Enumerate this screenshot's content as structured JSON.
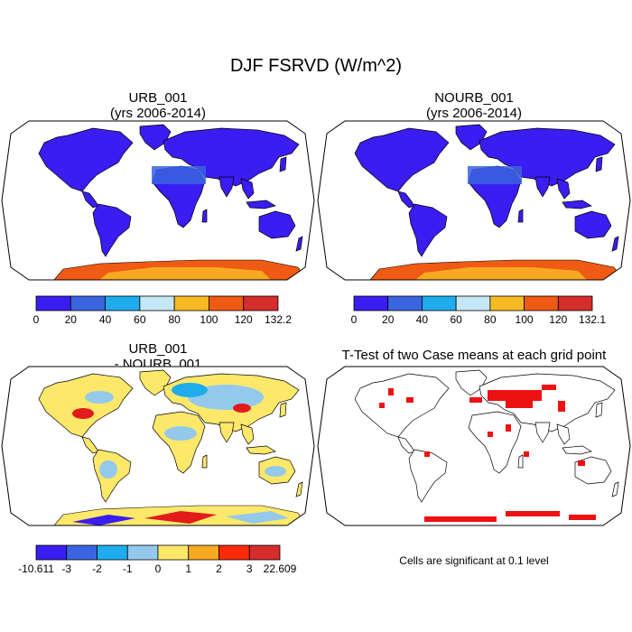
{
  "figure": {
    "title": "DJF FSRVD (W/m^2)",
    "footnote": "Cells are significant at 0.1 level"
  },
  "panels": {
    "urb": {
      "title_line1": "URB_001",
      "title_line2": "(yrs 2006-2014)"
    },
    "nourb": {
      "title_line1": "NOURB_001",
      "title_line2": "(yrs 2006-2014)"
    },
    "diff": {
      "title_line1": "URB_001",
      "title_line2": "- NOURB_001"
    },
    "ttest": {
      "title_line1": "T-Test of two Case means at each grid point"
    }
  },
  "colors": {
    "ocean": "#ffffff",
    "low_land": "#3a1df0",
    "sahara": "#3b64e0",
    "antarctica_hot": "#ef5a14",
    "antarctica_warm": "#f7a922",
    "diff_base": "#fde86a",
    "diff_cool": "#94c9ec",
    "diff_cold": "#1eacec",
    "diff_hot": "#e11a1a",
    "significant": "#ee1111"
  },
  "chart_data": [
    {
      "type": "heatmap",
      "panel": "URB_001",
      "colorbar": {
        "labels": [
          "0",
          "20",
          "40",
          "60",
          "80",
          "100",
          "120",
          "132.2"
        ],
        "colors": [
          "#3a1df0",
          "#3b64e0",
          "#1eacec",
          "#c5e6f5",
          "#f7ba22",
          "#ef5a14",
          "#d52c2c"
        ]
      }
    },
    {
      "type": "heatmap",
      "panel": "NOURB_001",
      "colorbar": {
        "labels": [
          "0",
          "20",
          "40",
          "60",
          "80",
          "100",
          "120",
          "132.1"
        ],
        "colors": [
          "#3a1df0",
          "#3b64e0",
          "#1eacec",
          "#c5e6f5",
          "#f7ba22",
          "#ef5a14",
          "#d52c2c"
        ]
      }
    },
    {
      "type": "heatmap",
      "panel": "URB_001 - NOURB_001",
      "colorbar": {
        "labels": [
          "-10.611",
          "-3",
          "-2",
          "-1",
          "0",
          "1",
          "2",
          "3",
          "22.609"
        ],
        "colors": [
          "#3a1df0",
          "#3b64e0",
          "#1eacec",
          "#94c9ec",
          "#fde86a",
          "#f7a922",
          "#ff2a0a",
          "#d52c2c"
        ]
      }
    },
    {
      "type": "heatmap",
      "panel": "T-Test",
      "significance_level": 0.1
    }
  ]
}
